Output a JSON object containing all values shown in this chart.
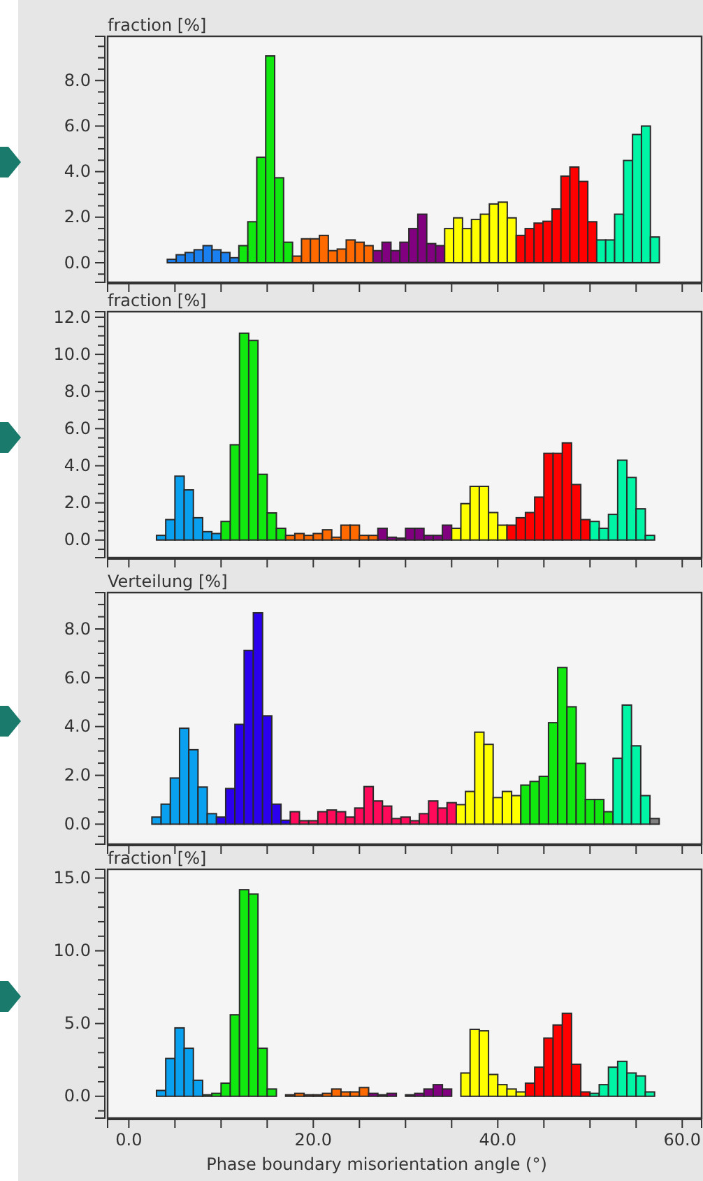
{
  "chart_data": [
    {
      "type": "histogram",
      "ylabel": "fraction [%]",
      "tick_labels": "y",
      "bins": [
        3.2,
        4.17,
        5.14,
        6.11,
        7.08,
        8.05,
        9.02,
        9.99,
        10.96,
        11.93,
        12.9,
        13.87,
        14.84,
        15.81,
        16.78,
        17.75,
        18.72,
        19.69,
        20.66,
        21.63,
        22.6,
        23.57,
        24.54,
        25.51,
        26.48,
        27.45,
        28.42,
        29.39,
        30.36,
        31.33,
        32.3,
        33.27,
        34.24,
        35.21,
        36.18,
        37.15,
        38.12,
        39.09,
        40.06,
        41.03,
        42,
        42.97,
        43.94,
        44.91,
        45.88,
        46.85,
        47.82,
        48.79,
        49.76,
        50.73,
        51.7,
        52.67,
        53.64,
        54.61,
        55.58,
        56.55,
        57.52
      ],
      "values": [
        0,
        0.15,
        0.35,
        0.45,
        0.57,
        0.75,
        0.57,
        0.45,
        0.22,
        0.75,
        1.8,
        4.63,
        9.08,
        3.73,
        0.9,
        0.29,
        1.05,
        1.05,
        1.2,
        0.53,
        0.6,
        1.0,
        0.9,
        0.75,
        0.53,
        0.9,
        0.53,
        0.9,
        1.5,
        2.13,
        0.84,
        0.75,
        1.5,
        1.97,
        1.5,
        1.9,
        2.13,
        2.58,
        2.66,
        1.97,
        1.2,
        1.5,
        1.74,
        1.82,
        2.36,
        3.8,
        4.2,
        3.57,
        1.8,
        1.0,
        1.0,
        2.13,
        4.49,
        5.63,
        6.0,
        1.13
      ],
      "colors": [
        "#1a80f0",
        "#1a80f0",
        "#1a80f0",
        "#1a80f0",
        "#1a80f0",
        "#1a80f0",
        "#1a80f0",
        "#1a80f0",
        "#1a80f0",
        "#10e810",
        "#10e810",
        "#10e810",
        "#10e810",
        "#10e810",
        "#10e810",
        "#ff6a00",
        "#ff6a00",
        "#ff6a00",
        "#ff6a00",
        "#ff6a00",
        "#ff6a00",
        "#ff6a00",
        "#ff6a00",
        "#ff6a00",
        "#800080",
        "#800080",
        "#800080",
        "#800080",
        "#800080",
        "#800080",
        "#800080",
        "#800080",
        "#ffff00",
        "#ffff00",
        "#ffff00",
        "#ffff00",
        "#ffff00",
        "#ffff00",
        "#ffff00",
        "#ffff00",
        "#ff0000",
        "#ff0000",
        "#ff0000",
        "#ff0000",
        "#ff0000",
        "#ff0000",
        "#ff0000",
        "#ff0000",
        "#ff0000",
        "#00f5a5",
        "#00f5a5",
        "#00f5a5",
        "#00f5a5",
        "#00f5a5",
        "#00f5a5",
        "#00f5a5"
      ],
      "xlim": [
        -2.3,
        62.1
      ],
      "ylim": [
        -0.86,
        9.94
      ],
      "xticks": [
        {
          "value": 0,
          "label": null
        },
        {
          "value": 5,
          "label": null
        },
        {
          "value": 10,
          "label": null
        },
        {
          "value": 15,
          "label": null
        },
        {
          "value": 20,
          "label": null
        },
        {
          "value": 25,
          "label": null
        },
        {
          "value": 30,
          "label": null
        },
        {
          "value": 35,
          "label": null
        },
        {
          "value": 40,
          "label": null
        },
        {
          "value": 45,
          "label": null
        },
        {
          "value": 50,
          "label": null
        },
        {
          "value": 55,
          "label": null
        },
        {
          "value": 60,
          "label": null
        }
      ],
      "yticks": [
        {
          "value": -0.5,
          "label": null
        },
        {
          "value": 0,
          "label": "0.0"
        },
        {
          "value": 0.5,
          "label": null
        },
        {
          "value": 1,
          "label": null
        },
        {
          "value": 1.5,
          "label": null
        },
        {
          "value": 2,
          "label": "2.0"
        },
        {
          "value": 2.5,
          "label": null
        },
        {
          "value": 3,
          "label": null
        },
        {
          "value": 3.5,
          "label": null
        },
        {
          "value": 4,
          "label": "4.0"
        },
        {
          "value": 4.5,
          "label": null
        },
        {
          "value": 5,
          "label": null
        },
        {
          "value": 5.5,
          "label": null
        },
        {
          "value": 6,
          "label": "6.0"
        },
        {
          "value": 6.5,
          "label": null
        },
        {
          "value": 7,
          "label": null
        },
        {
          "value": 7.5,
          "label": null
        },
        {
          "value": 8,
          "label": "8.0"
        },
        {
          "value": 8.5,
          "label": null
        },
        {
          "value": 9,
          "label": null
        },
        {
          "value": 9.5,
          "label": null
        }
      ]
    },
    {
      "type": "histogram",
      "ylabel": "fraction [%]",
      "tick_labels": "y",
      "bins": [
        3,
        4,
        5,
        6,
        7,
        8,
        9,
        10,
        11,
        12,
        13,
        14,
        15,
        16,
        17,
        18,
        19,
        20,
        21,
        22,
        23,
        24,
        25,
        26,
        27,
        28,
        29,
        30,
        31,
        32,
        33,
        34,
        35,
        36,
        37,
        38,
        39,
        40,
        41,
        42,
        43,
        44,
        45,
        46,
        47,
        48,
        49,
        50,
        51,
        52,
        53,
        54,
        55,
        56,
        57
      ],
      "values": [
        0.25,
        1.1,
        3.44,
        2.7,
        1.2,
        0.45,
        0.35,
        1.0,
        5.13,
        11.14,
        10.75,
        3.54,
        1.46,
        0.63,
        0.25,
        0.35,
        0.25,
        0.35,
        0.55,
        0.15,
        0.8,
        0.8,
        0.25,
        0.25,
        0.63,
        0.15,
        0.1,
        0.63,
        0.63,
        0.25,
        0.25,
        0.8,
        0.63,
        1.96,
        2.89,
        2.89,
        1.48,
        0.8,
        0.8,
        1.2,
        1.48,
        2.31,
        4.67,
        4.67,
        5.23,
        2.99,
        1.1,
        1.0,
        0.63,
        1.38,
        4.3,
        3.37,
        1.68,
        0.25
      ],
      "colors": [
        "#0aa0f0",
        "#0aa0f0",
        "#0aa0f0",
        "#0aa0f0",
        "#0aa0f0",
        "#0aa0f0",
        "#0aa0f0",
        "#10e810",
        "#10e810",
        "#10e810",
        "#10e810",
        "#10e810",
        "#10e810",
        "#10e810",
        "#ff6a00",
        "#ff6a00",
        "#ff6a00",
        "#ff6a00",
        "#ff6a00",
        "#ff6a00",
        "#ff6a00",
        "#ff6a00",
        "#ff6a00",
        "#ff6a00",
        "#800080",
        "#800080",
        "#800080",
        "#800080",
        "#800080",
        "#800080",
        "#800080",
        "#800080",
        "#ffff00",
        "#ffff00",
        "#ffff00",
        "#ffff00",
        "#ffff00",
        "#ffff00",
        "#ff0000",
        "#ff0000",
        "#ff0000",
        "#ff0000",
        "#ff0000",
        "#ff0000",
        "#ff0000",
        "#ff0000",
        "#ff0000",
        "#00f5a5",
        "#00f5a5",
        "#00f5a5",
        "#00f5a5",
        "#00f5a5",
        "#00f5a5",
        "#00f5a5"
      ],
      "xlim": [
        -2.3,
        62.1
      ],
      "ylim": [
        -0.95,
        12.3
      ],
      "xticks": [
        {
          "value": 0,
          "label": null
        },
        {
          "value": 5,
          "label": null
        },
        {
          "value": 10,
          "label": null
        },
        {
          "value": 15,
          "label": null
        },
        {
          "value": 20,
          "label": null
        },
        {
          "value": 25,
          "label": null
        },
        {
          "value": 30,
          "label": null
        },
        {
          "value": 35,
          "label": null
        },
        {
          "value": 40,
          "label": null
        },
        {
          "value": 45,
          "label": null
        },
        {
          "value": 50,
          "label": null
        },
        {
          "value": 55,
          "label": null
        },
        {
          "value": 60,
          "label": null
        }
      ],
      "yticks": [
        {
          "value": -0.5,
          "label": null
        },
        {
          "value": 0,
          "label": "0.0"
        },
        {
          "value": 0.5,
          "label": null
        },
        {
          "value": 1,
          "label": null
        },
        {
          "value": 1.5,
          "label": null
        },
        {
          "value": 2,
          "label": "2.0"
        },
        {
          "value": 2.5,
          "label": null
        },
        {
          "value": 3,
          "label": null
        },
        {
          "value": 3.5,
          "label": null
        },
        {
          "value": 4,
          "label": "4.0"
        },
        {
          "value": 4.5,
          "label": null
        },
        {
          "value": 5,
          "label": null
        },
        {
          "value": 5.5,
          "label": null
        },
        {
          "value": 6,
          "label": "6.0"
        },
        {
          "value": 6.5,
          "label": null
        },
        {
          "value": 7,
          "label": null
        },
        {
          "value": 7.5,
          "label": null
        },
        {
          "value": 8,
          "label": "8.0"
        },
        {
          "value": 8.5,
          "label": null
        },
        {
          "value": 9,
          "label": null
        },
        {
          "value": 9.5,
          "label": null
        },
        {
          "value": 10,
          "label": "10.0"
        },
        {
          "value": 10.5,
          "label": null
        },
        {
          "value": 11,
          "label": null
        },
        {
          "value": 11.5,
          "label": null
        },
        {
          "value": 12,
          "label": "12.0"
        }
      ]
    },
    {
      "type": "histogram",
      "ylabel": "Verteilung [%]",
      "tick_labels": "y",
      "bins": [
        2.5,
        3.5,
        4.5,
        5.5,
        6.5,
        7.5,
        8.5,
        9.5,
        10.5,
        11.5,
        12.5,
        13.5,
        14.5,
        15.5,
        16.5,
        17.5,
        18.5,
        19.5,
        20.5,
        21.5,
        22.5,
        23.5,
        24.5,
        25.5,
        26.5,
        27.5,
        28.5,
        29.5,
        30.5,
        31.5,
        32.5,
        33.5,
        34.5,
        35.5,
        36.5,
        37.5,
        38.5,
        39.5,
        40.5,
        41.5,
        42.5,
        43.5,
        44.5,
        45.5,
        46.5,
        47.5,
        48.5,
        49.5,
        50.5,
        51.5,
        52.5,
        53.5,
        54.5,
        55.5,
        56.5,
        57.5
      ],
      "values": [
        0.29,
        0.82,
        1.89,
        3.93,
        3.05,
        1.52,
        0.43,
        0.29,
        1.46,
        4.09,
        7.12,
        8.66,
        4.44,
        0.82,
        0.16,
        0.51,
        0.14,
        0.14,
        0.51,
        0.58,
        0.51,
        0.29,
        0.66,
        1.54,
        0.95,
        0.74,
        0.23,
        0.29,
        0.14,
        0.43,
        0.95,
        0.66,
        0.88,
        0.8,
        1.34,
        3.77,
        3.27,
        1.09,
        1.34,
        1.17,
        1.6,
        1.75,
        1.96,
        4.16,
        6.42,
        4.81,
        2.49,
        1.01,
        1.01,
        0.51,
        2.7,
        4.88,
        3.21,
        1.17,
        0.23
      ],
      "colors": [
        "#0aa0f0",
        "#0aa0f0",
        "#0aa0f0",
        "#0aa0f0",
        "#0aa0f0",
        "#0aa0f0",
        "#0aa0f0",
        "#2a00ee",
        "#2a00ee",
        "#2a00ee",
        "#2a00ee",
        "#2a00ee",
        "#2a00ee",
        "#2a00ee",
        "#2a00ee",
        "#ff0a5a",
        "#ff0a5a",
        "#ff0a5a",
        "#ff0a5a",
        "#ff0a5a",
        "#ff0a5a",
        "#ff0a5a",
        "#ff0a5a",
        "#ff0a5a",
        "#ff0a5a",
        "#ff0a5a",
        "#ff0a5a",
        "#ff0a5a",
        "#ff0a5a",
        "#ff0a5a",
        "#ff0a5a",
        "#ff0a5a",
        "#ff0a5a",
        "#ffff00",
        "#ffff00",
        "#ffff00",
        "#ffff00",
        "#ffff00",
        "#ffff00",
        "#ffff00",
        "#10e810",
        "#10e810",
        "#10e810",
        "#10e810",
        "#10e810",
        "#10e810",
        "#10e810",
        "#10e810",
        "#10e810",
        "#10e810",
        "#00f5a5",
        "#00f5a5",
        "#00f5a5",
        "#00f5a5",
        "#808080"
      ],
      "xlim": [
        -2.3,
        62.1
      ],
      "ylim": [
        -0.82,
        9.49
      ],
      "xticks": [
        {
          "value": 0,
          "label": null
        },
        {
          "value": 5,
          "label": null
        },
        {
          "value": 10,
          "label": null
        },
        {
          "value": 15,
          "label": null
        },
        {
          "value": 20,
          "label": null
        },
        {
          "value": 25,
          "label": null
        },
        {
          "value": 30,
          "label": null
        },
        {
          "value": 35,
          "label": null
        },
        {
          "value": 40,
          "label": null
        },
        {
          "value": 45,
          "label": null
        },
        {
          "value": 50,
          "label": null
        },
        {
          "value": 55,
          "label": null
        },
        {
          "value": 60,
          "label": null
        }
      ],
      "yticks": [
        {
          "value": -0.5,
          "label": null
        },
        {
          "value": 0,
          "label": "0.0"
        },
        {
          "value": 0.5,
          "label": null
        },
        {
          "value": 1,
          "label": null
        },
        {
          "value": 1.5,
          "label": null
        },
        {
          "value": 2,
          "label": "2.0"
        },
        {
          "value": 2.5,
          "label": null
        },
        {
          "value": 3,
          "label": null
        },
        {
          "value": 3.5,
          "label": null
        },
        {
          "value": 4,
          "label": "4.0"
        },
        {
          "value": 4.5,
          "label": null
        },
        {
          "value": 5,
          "label": null
        },
        {
          "value": 5.5,
          "label": null
        },
        {
          "value": 6,
          "label": "6.0"
        },
        {
          "value": 6.5,
          "label": null
        },
        {
          "value": 7,
          "label": null
        },
        {
          "value": 7.5,
          "label": null
        },
        {
          "value": 8,
          "label": "8.0"
        },
        {
          "value": 8.5,
          "label": null
        },
        {
          "value": 9,
          "label": null
        }
      ]
    },
    {
      "type": "histogram",
      "ylabel": "fraction [%]",
      "xlabel": "Phase boundary misorientation angle (°)",
      "bins": [
        3,
        4,
        5,
        6,
        7,
        8,
        9,
        10,
        11,
        12,
        13,
        14,
        15,
        16,
        17,
        18,
        19,
        20,
        21,
        22,
        23,
        24,
        25,
        26,
        27,
        28,
        29,
        30,
        31,
        32,
        33,
        34,
        35,
        36,
        37,
        38,
        39,
        40,
        41,
        42,
        43,
        44,
        45,
        46,
        47,
        48,
        49,
        50,
        51,
        52,
        53,
        54,
        55,
        56,
        57
      ],
      "values": [
        0.4,
        2.6,
        4.7,
        3.3,
        1.1,
        0.1,
        0.2,
        0.9,
        5.6,
        14.2,
        13.9,
        3.3,
        0.5,
        0,
        0.1,
        0.2,
        0.1,
        0.1,
        0.2,
        0.5,
        0.3,
        0.3,
        0.6,
        0.2,
        0.1,
        0.2,
        0,
        0.1,
        0.2,
        0.5,
        0.8,
        0.5,
        0,
        1.6,
        4.6,
        4.5,
        1.5,
        0.8,
        0.5,
        0.3,
        0.9,
        2.0,
        4.0,
        4.9,
        5.7,
        2.2,
        0.3,
        0.2,
        0.8,
        2.0,
        2.4,
        1.6,
        1.4,
        0.3
      ],
      "colors": [
        "#0aa0f0",
        "#0aa0f0",
        "#0aa0f0",
        "#0aa0f0",
        "#0aa0f0",
        "#10e810",
        "#10e810",
        "#10e810",
        "#10e810",
        "#10e810",
        "#10e810",
        "#10e810",
        "#10e810",
        "#ff6a00",
        "#ff6a00",
        "#ff6a00",
        "#ff6a00",
        "#ff6a00",
        "#ff6a00",
        "#ff6a00",
        "#ff6a00",
        "#ff6a00",
        "#ff6a00",
        "#800080",
        "#800080",
        "#800080",
        "#800080",
        "#800080",
        "#800080",
        "#800080",
        "#800080",
        "#800080",
        "#800080",
        "#ffff00",
        "#ffff00",
        "#ffff00",
        "#ffff00",
        "#ffff00",
        "#ffff00",
        "#ffff00",
        "#ff0000",
        "#ff0000",
        "#ff0000",
        "#ff0000",
        "#ff0000",
        "#ff0000",
        "#ff0000",
        "#00f5a5",
        "#00f5a5",
        "#00f5a5",
        "#00f5a5",
        "#00f5a5",
        "#00f5a5",
        "#00f5a5"
      ],
      "xlim": [
        -2.3,
        62.1
      ],
      "ylim": [
        -1.5,
        15.6
      ],
      "xticks": [
        {
          "value": 0,
          "label": "0.0"
        },
        {
          "value": 5,
          "label": null
        },
        {
          "value": 10,
          "label": null
        },
        {
          "value": 15,
          "label": null
        },
        {
          "value": 20,
          "label": "20.0"
        },
        {
          "value": 25,
          "label": null
        },
        {
          "value": 30,
          "label": null
        },
        {
          "value": 35,
          "label": null
        },
        {
          "value": 40,
          "label": "40.0"
        },
        {
          "value": 45,
          "label": null
        },
        {
          "value": 50,
          "label": null
        },
        {
          "value": 55,
          "label": null
        },
        {
          "value": 60,
          "label": "60.0"
        }
      ],
      "yticks": [
        {
          "value": -1,
          "label": null
        },
        {
          "value": 0,
          "label": "0.0"
        },
        {
          "value": 1,
          "label": null
        },
        {
          "value": 2,
          "label": null
        },
        {
          "value": 3,
          "label": null
        },
        {
          "value": 4,
          "label": null
        },
        {
          "value": 5,
          "label": "5.0"
        },
        {
          "value": 6,
          "label": null
        },
        {
          "value": 7,
          "label": null
        },
        {
          "value": 8,
          "label": null
        },
        {
          "value": 9,
          "label": null
        },
        {
          "value": 10,
          "label": "10.0"
        },
        {
          "value": 11,
          "label": null
        },
        {
          "value": 12,
          "label": null
        },
        {
          "value": 13,
          "label": null
        },
        {
          "value": 14,
          "label": null
        },
        {
          "value": 15,
          "label": "15.0"
        }
      ]
    }
  ]
}
